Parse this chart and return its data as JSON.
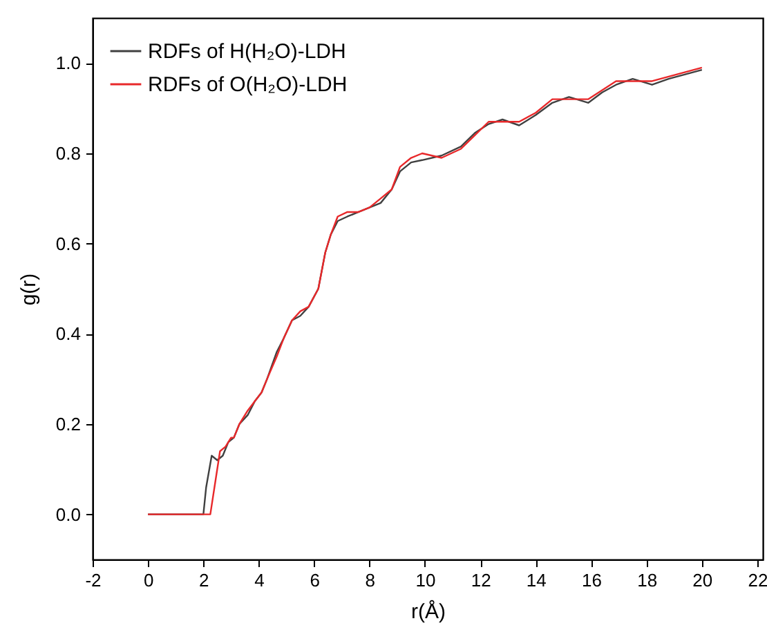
{
  "chart_data": {
    "type": "line",
    "xlabel": "r(Å)",
    "ylabel": "g(r)",
    "xlim": [
      -2,
      22.2
    ],
    "ylim": [
      -0.1,
      1.1
    ],
    "xticks": [
      -2,
      0,
      2,
      4,
      6,
      8,
      10,
      12,
      14,
      16,
      18,
      20,
      22
    ],
    "yticks": [
      {
        "value": 0,
        "label": "0.0"
      },
      {
        "value": 0.2,
        "label": "0.2"
      },
      {
        "value": 0.4,
        "label": "0.4"
      },
      {
        "value": 0.6,
        "label": "0.6"
      },
      {
        "value": 0.8,
        "label": "0.8"
      },
      {
        "value": 1,
        "label": "1.0"
      }
    ],
    "grid": false,
    "legend": "top left",
    "marker": "none",
    "line_style": "solid",
    "series": [
      {
        "name": "RDFs of H(H₂O)-LDH",
        "color": "#404040",
        "x": [
          0,
          2.0,
          2.1,
          2.3,
          2.5,
          2.7,
          2.9,
          3.1,
          3.3,
          3.6,
          3.85,
          4.1,
          4.3,
          4.65,
          4.9,
          5.2,
          5.5,
          5.8,
          6.15,
          6.4,
          6.6,
          6.85,
          7.2,
          7.6,
          8.0,
          8.4,
          8.8,
          9.1,
          9.5,
          9.9,
          10.6,
          11.3,
          11.8,
          12.3,
          12.8,
          13.4,
          14.0,
          14.6,
          15.2,
          15.9,
          16.4,
          16.9,
          17.5,
          18.2,
          18.8,
          19.4,
          20.0
        ],
        "values": [
          0,
          0,
          0.06,
          0.13,
          0.12,
          0.13,
          0.16,
          0.17,
          0.2,
          0.22,
          0.25,
          0.27,
          0.3,
          0.36,
          0.39,
          0.43,
          0.44,
          0.46,
          0.5,
          0.58,
          0.62,
          0.65,
          0.66,
          0.67,
          0.68,
          0.69,
          0.72,
          0.76,
          0.78,
          0.785,
          0.795,
          0.815,
          0.845,
          0.865,
          0.875,
          0.862,
          0.885,
          0.912,
          0.925,
          0.912,
          0.935,
          0.952,
          0.965,
          0.952,
          0.965,
          0.975,
          0.985
        ]
      },
      {
        "name": "RDFs of O(H₂O)-LDH",
        "color": "#e8282a",
        "x": [
          0,
          2.25,
          2.4,
          2.6,
          2.8,
          3.0,
          3.1,
          3.3,
          3.6,
          3.85,
          4.1,
          4.3,
          4.65,
          4.9,
          5.2,
          5.5,
          5.8,
          6.15,
          6.4,
          6.6,
          6.85,
          7.2,
          7.6,
          8.0,
          8.4,
          8.8,
          9.1,
          9.5,
          9.9,
          10.6,
          11.3,
          11.8,
          12.3,
          12.8,
          13.4,
          14.0,
          14.6,
          15.2,
          15.9,
          16.4,
          16.9,
          17.5,
          18.2,
          18.8,
          19.4,
          20.0
        ],
        "values": [
          0,
          0,
          0.06,
          0.14,
          0.15,
          0.17,
          0.17,
          0.2,
          0.23,
          0.25,
          0.27,
          0.3,
          0.35,
          0.39,
          0.43,
          0.45,
          0.46,
          0.5,
          0.58,
          0.62,
          0.66,
          0.67,
          0.67,
          0.68,
          0.7,
          0.72,
          0.77,
          0.79,
          0.8,
          0.79,
          0.81,
          0.84,
          0.87,
          0.87,
          0.87,
          0.89,
          0.92,
          0.92,
          0.92,
          0.94,
          0.96,
          0.96,
          0.96,
          0.97,
          0.98,
          0.99
        ]
      }
    ]
  }
}
